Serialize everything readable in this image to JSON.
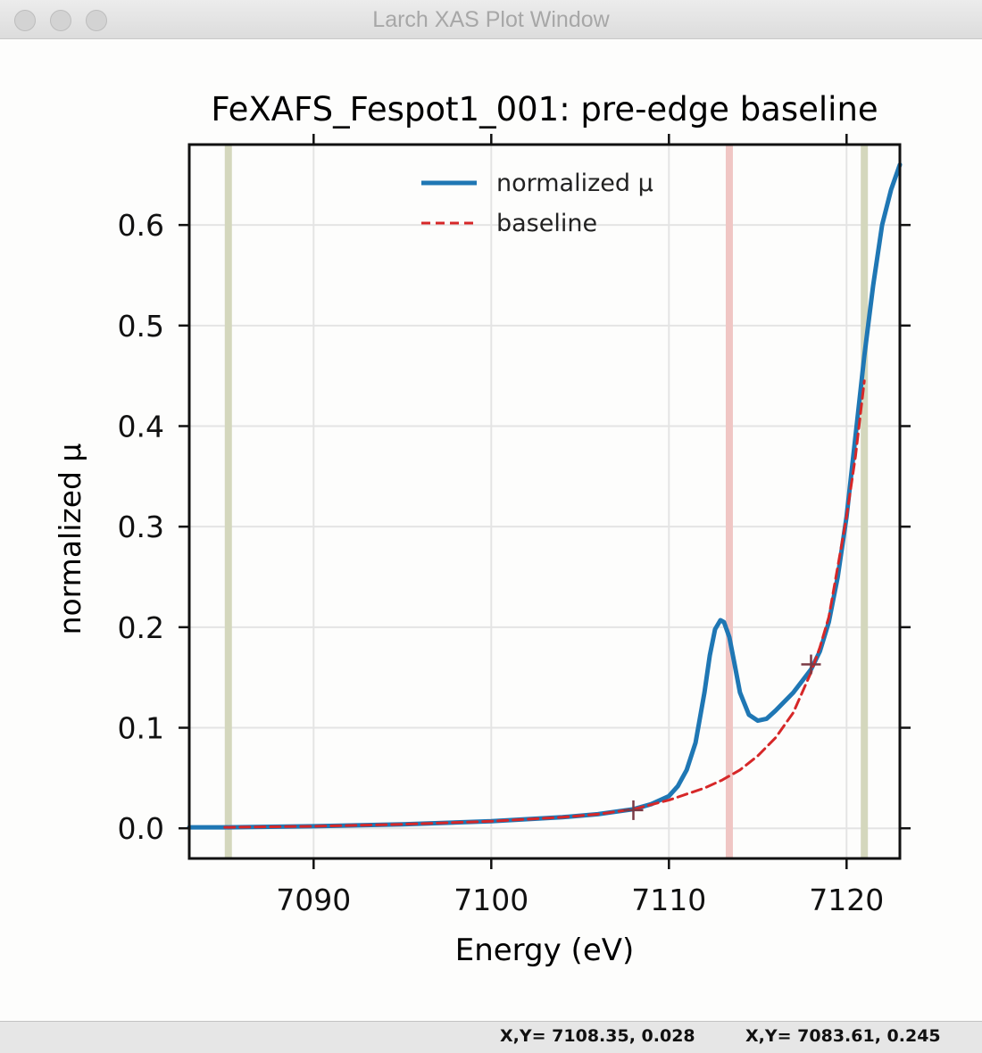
{
  "window": {
    "title": "Larch XAS Plot Window",
    "buttons": [
      "close",
      "minimize",
      "zoom"
    ]
  },
  "status": {
    "field1": "X,Y= 7108.35, 0.028",
    "field2": "X,Y= 7083.61, 0.245"
  },
  "colors": {
    "mu_line": "#1f77b4",
    "baseline": "#d62728",
    "pre_edge_marker": "#d4d7bd",
    "peak_marker": "#f0c6c4",
    "fit_point_marker": "#7a3a45"
  },
  "chart_data": {
    "type": "line",
    "title": "FeXAFS_Fespot1_001:  pre-edge baseline",
    "xlabel": "Energy (eV)",
    "ylabel": "normalized μ",
    "xlim": [
      7083,
      7123
    ],
    "ylim": [
      -0.03,
      0.68
    ],
    "xticks": [
      7090,
      7100,
      7110,
      7120
    ],
    "xtick_labels": [
      "7090",
      "7100",
      "7110",
      "7120"
    ],
    "yticks": [
      0.0,
      0.1,
      0.2,
      0.3,
      0.4,
      0.5,
      0.6
    ],
    "ytick_labels": [
      "0.0",
      "0.1",
      "0.2",
      "0.3",
      "0.4",
      "0.5",
      "0.6"
    ],
    "grid": true,
    "legend_position": "top-center",
    "vertical_lines": [
      {
        "x": 7085.2,
        "color": "#d4d7bd"
      },
      {
        "x": 7113.4,
        "color": "#f0c6c4"
      },
      {
        "x": 7121.0,
        "color": "#d4d7bd"
      }
    ],
    "fit_points": [
      {
        "x": 7108.0,
        "y": 0.018
      },
      {
        "x": 7118.0,
        "y": 0.163
      }
    ],
    "series": [
      {
        "name": "normalized μ",
        "style": "solid",
        "color": "#1f77b4",
        "x": [
          7083,
          7085,
          7090,
          7095,
          7100,
          7104,
          7106,
          7108,
          7109,
          7110,
          7110.5,
          7111,
          7111.5,
          7112,
          7112.3,
          7112.6,
          7112.9,
          7113.1,
          7113.4,
          7113.7,
          7114,
          7114.5,
          7115,
          7115.5,
          7116,
          7117,
          7118,
          7118.5,
          7119,
          7119.5,
          7120,
          7120.5,
          7121,
          7121.5,
          7122,
          7122.5,
          7123
        ],
        "y": [
          0.001,
          0.001,
          0.002,
          0.004,
          0.007,
          0.011,
          0.014,
          0.019,
          0.024,
          0.032,
          0.042,
          0.058,
          0.085,
          0.135,
          0.172,
          0.198,
          0.207,
          0.205,
          0.19,
          0.163,
          0.135,
          0.113,
          0.107,
          0.109,
          0.117,
          0.135,
          0.158,
          0.176,
          0.205,
          0.25,
          0.31,
          0.39,
          0.47,
          0.54,
          0.6,
          0.635,
          0.66
        ]
      },
      {
        "name": "baseline",
        "style": "dashed",
        "color": "#d62728",
        "x": [
          7085,
          7090,
          7095,
          7100,
          7104,
          7106,
          7108,
          7110,
          7112,
          7113,
          7114,
          7115,
          7116,
          7117,
          7118,
          7118.5,
          7119,
          7119.5,
          7120,
          7120.5,
          7121
        ],
        "y": [
          0.001,
          0.002,
          0.004,
          0.007,
          0.011,
          0.014,
          0.019,
          0.028,
          0.04,
          0.048,
          0.058,
          0.072,
          0.09,
          0.115,
          0.155,
          0.18,
          0.21,
          0.26,
          0.31,
          0.37,
          0.445
        ]
      }
    ]
  }
}
